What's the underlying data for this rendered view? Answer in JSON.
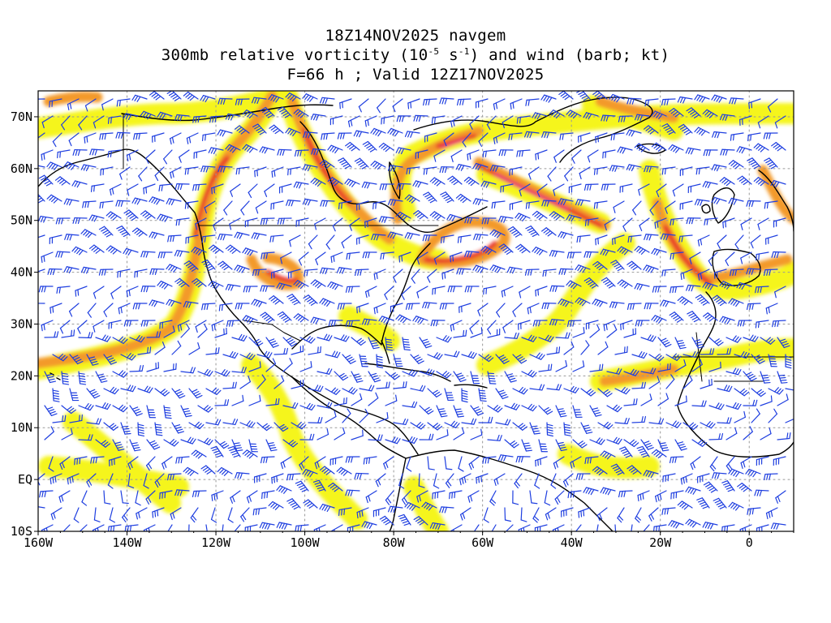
{
  "title": {
    "line1": "18Z14NOV2025 navgem",
    "line2_pre": "300mb relative vorticity (10",
    "line2_exp1": "-5",
    "line2_mid": " s",
    "line2_exp2": "-1",
    "line2_post": ") and wind (barb; kt)",
    "line3": "F=66 h ; Valid 12Z17NOV2025"
  },
  "map": {
    "lon_range": [
      -160,
      10
    ],
    "lat_range": [
      -10,
      75
    ],
    "lon_labels": [
      "160W",
      "140W",
      "120W",
      "100W",
      "80W",
      "60W",
      "40W",
      "20W",
      "0"
    ],
    "lat_labels": [
      "70N",
      "60N",
      "50N",
      "40N",
      "30N",
      "20N",
      "10N",
      "EQ",
      "10S"
    ],
    "gridline_style": "dotted",
    "colors": {
      "frame": "#000000",
      "coast": "#000000",
      "barb": "#1f3fe0",
      "grid": "#999999",
      "shade_light": "#f5f51e",
      "shade_mid": "#f9c23c",
      "shade_orange": "#f08a28",
      "shade_red": "#e8312a",
      "shade_magenta": "#ec1e8c"
    }
  }
}
